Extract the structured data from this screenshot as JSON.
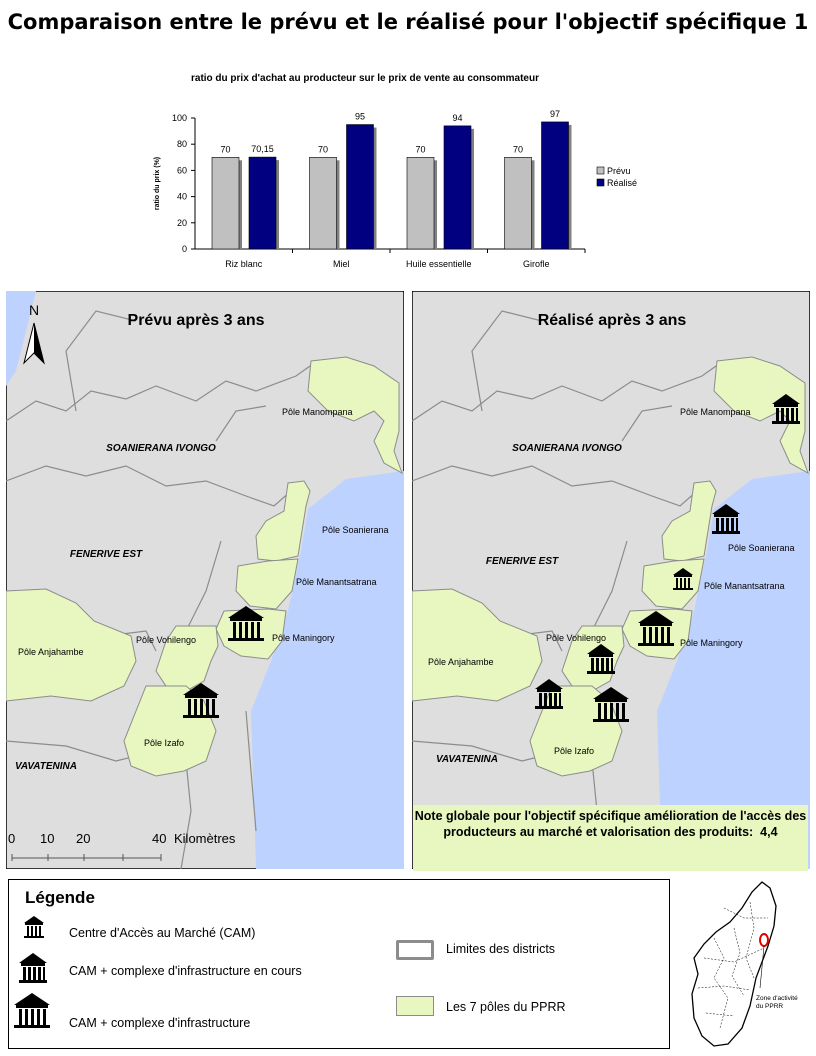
{
  "title": "Comparaison entre le prévu et le réalisé pour l'objectif spécifique 1",
  "chart_data": {
    "type": "bar",
    "title": "ratio du prix d'achat au producteur sur le prix de vente au consommateur",
    "ylabel": "ratio du prix (%)",
    "xlabel": "",
    "ylim": [
      0,
      100
    ],
    "yticks": [
      0,
      20,
      40,
      60,
      80,
      100
    ],
    "categories": [
      "Riz blanc",
      "Miel",
      "Huile essentielle",
      "Girofle"
    ],
    "series": [
      {
        "name": "Prévu",
        "values": [
          70,
          70,
          70,
          70
        ],
        "labels": [
          "70",
          "70",
          "70",
          "70"
        ],
        "color": "#c0c0c0"
      },
      {
        "name": "Réalisé",
        "values": [
          70.15,
          95,
          94,
          97
        ],
        "labels": [
          "70,15",
          "95",
          "94",
          "97"
        ],
        "color": "#000080"
      }
    ],
    "legend": "right"
  },
  "maps": {
    "left_title": "Prévu après 3 ans",
    "right_title": "Réalisé après 3 ans",
    "north": "N",
    "districts": {
      "soanierana": "SOANIERANA IVONGO",
      "fenerive": "FENERIVE EST",
      "vavatenina": "VAVATENINA"
    },
    "poles": {
      "manompana": "Pôle Manompana",
      "soanierana": "Pôle Soanierana",
      "manantsatrana": "Pôle Manantsatrana",
      "maningory": "Pôle Maningory",
      "vohilengo": "Pôle Vohilengo",
      "anjahambe": "Pôle Anjahambe",
      "izafo": "Pôle Izafo"
    },
    "scale": {
      "t0": "0",
      "t10": "10",
      "t20": "20",
      "t40": "40",
      "unit": "Kilomètres"
    },
    "colors": {
      "land": "#dedede",
      "sea": "#bed2ff",
      "pole": "#e7f7bf",
      "border": "#8c8c8c"
    }
  },
  "note": {
    "text": "Note globale pour l'objectif spécifique amélioration de l'accès des producteurs au marché et valorisation des produits:",
    "score": "4,4"
  },
  "legend": {
    "title": "Légende",
    "cam": "Centre d'Accès au Marché (CAM)",
    "cam_building": "CAM + complexe d'infrastructure en cours",
    "cam_complex": "CAM + complexe d'infrastructure",
    "district_limits": "Limites des districts",
    "poles": "Les 7 pôles du PPRR"
  },
  "inset": {
    "label": "Zone d'activité du PPRR"
  }
}
